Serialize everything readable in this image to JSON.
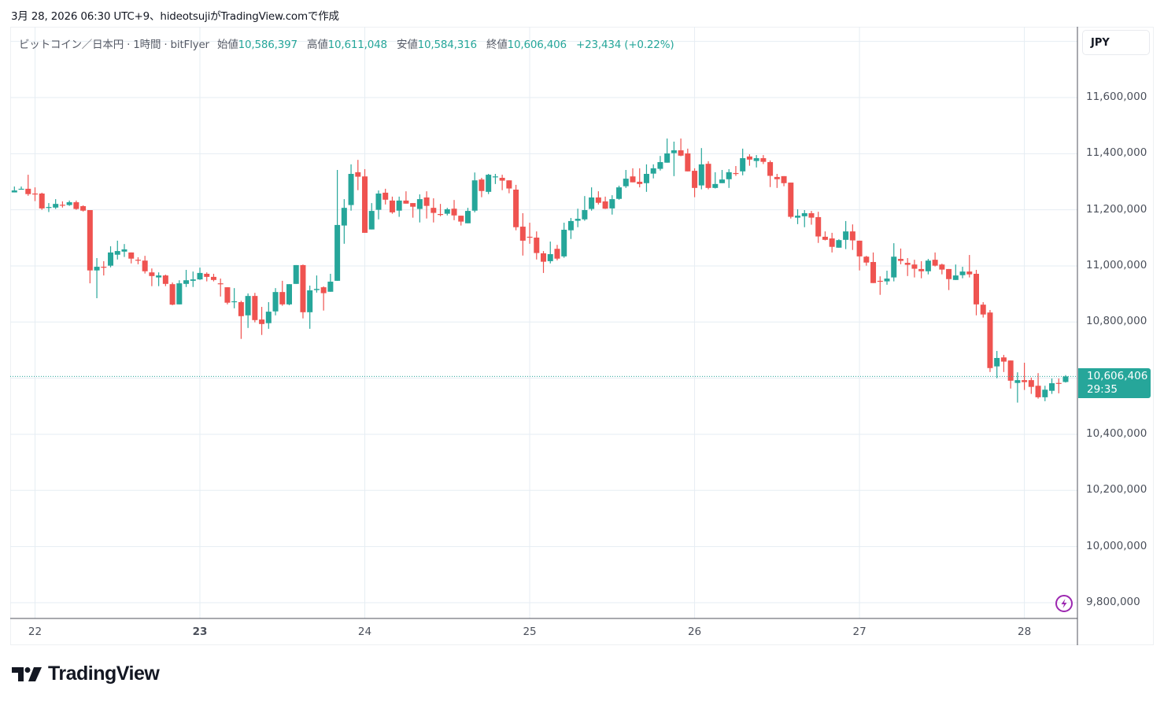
{
  "caption": "3月 28, 2026 06:30 UTC+9、hideotsujiがTradingView.comで作成",
  "legend": {
    "symbol": "ビットコイン／日本円 · 1時間 · bitFlyer",
    "open_label": "始値",
    "open": "10,586,397",
    "high_label": "高値",
    "high": "10,611,048",
    "low_label": "安値",
    "low": "10,584,316",
    "close_label": "終値",
    "close": "10,606,406",
    "change": "+23,434 (+0.22%)"
  },
  "currency_button": "JPY",
  "price_tag": {
    "price": "10,606,406",
    "countdown": "29:35"
  },
  "logo_text": "TradingView",
  "colors": {
    "up": "#26a69a",
    "down": "#ef5350",
    "grid": "#e6edf3",
    "axis": "#50535e",
    "alert": "#9c27b0"
  },
  "icons": {
    "alert": "lightning-bolt-icon",
    "logo": "tradingview-logo-icon"
  },
  "chart_data": {
    "type": "candlestick",
    "title": "ビットコイン／日本円 · 1時間 · bitFlyer",
    "interval": "1時間",
    "ohlc_unit": "thousand JPY",
    "ylim": [
      9760,
      11860
    ],
    "grid": true,
    "y_ticks": [
      {
        "value": 11600,
        "label": "11,600,000"
      },
      {
        "value": 11400,
        "label": "11,400,000"
      },
      {
        "value": 11200,
        "label": "11,200,000"
      },
      {
        "value": 11000,
        "label": "11,000,000"
      },
      {
        "value": 10800,
        "label": "10,800,000"
      },
      {
        "value": 10400,
        "label": "10,400,000"
      },
      {
        "value": 10200,
        "label": "10,200,000"
      },
      {
        "value": 10000,
        "label": "10,000,000"
      },
      {
        "value": 9800,
        "label": "9,800,000"
      }
    ],
    "x_ticks": [
      {
        "candle_index": 3,
        "label": "22"
      },
      {
        "candle_index": 27,
        "label": "23"
      },
      {
        "candle_index": 51,
        "label": "24"
      },
      {
        "candle_index": 75,
        "label": "25"
      },
      {
        "candle_index": 99,
        "label": "26"
      },
      {
        "candle_index": 123,
        "label": "27"
      },
      {
        "candle_index": 147,
        "label": "28"
      }
    ],
    "last_price": 10606.406,
    "candles_ohlc": [
      [
        11262,
        11283,
        11262,
        11269
      ],
      [
        11273,
        11283,
        11273,
        11275
      ],
      [
        11275,
        11325,
        11250,
        11256
      ],
      [
        11258,
        11280,
        11231,
        11257
      ],
      [
        11258,
        11261,
        11200,
        11205
      ],
      [
        11209,
        11224,
        11192,
        11210
      ],
      [
        11208,
        11238,
        11203,
        11221
      ],
      [
        11218,
        11230,
        11208,
        11217
      ],
      [
        11217,
        11233,
        11214,
        11227
      ],
      [
        11227,
        11233,
        11200,
        11203
      ],
      [
        11213,
        11216,
        11194,
        11197
      ],
      [
        11199,
        11199,
        10938,
        10984
      ],
      [
        10984,
        11028,
        10885,
        10997
      ],
      [
        10997,
        11017,
        10966,
        10996
      ],
      [
        11001,
        11070,
        10995,
        11048
      ],
      [
        11040,
        11090,
        11023,
        11053
      ],
      [
        11051,
        11078,
        11032,
        11059
      ],
      [
        11048,
        11048,
        11009,
        11026
      ],
      [
        11022,
        11031,
        11006,
        11021
      ],
      [
        11019,
        11036,
        10973,
        10981
      ],
      [
        10977,
        10991,
        10928,
        10964
      ],
      [
        10959,
        10977,
        10928,
        10966
      ],
      [
        10966,
        10969,
        10928,
        10936
      ],
      [
        10935,
        10941,
        10860,
        10862
      ],
      [
        10863,
        10949,
        10863,
        10938
      ],
      [
        10936,
        10986,
        10925,
        10949
      ],
      [
        10947,
        10980,
        10925,
        10952
      ],
      [
        10952,
        10994,
        10950,
        10975
      ],
      [
        10972,
        10977,
        10945,
        10961
      ],
      [
        10961,
        10972,
        10945,
        10950
      ],
      [
        10938,
        10955,
        10891,
        10937
      ],
      [
        10924,
        10924,
        10863,
        10869
      ],
      [
        10873,
        10921,
        10849,
        10874
      ],
      [
        10871,
        10876,
        10740,
        10821
      ],
      [
        10824,
        10902,
        10779,
        10893
      ],
      [
        10893,
        10904,
        10799,
        10807
      ],
      [
        10809,
        10854,
        10754,
        10793
      ],
      [
        10796,
        10871,
        10776,
        10837
      ],
      [
        10838,
        10921,
        10824,
        10907
      ],
      [
        10907,
        10947,
        10858,
        10863
      ],
      [
        10863,
        10935,
        10860,
        10935
      ],
      [
        10936,
        11003,
        10936,
        11003
      ],
      [
        11003,
        11005,
        10813,
        10835
      ],
      [
        10835,
        10930,
        10776,
        10913
      ],
      [
        10914,
        10966,
        10905,
        10918
      ],
      [
        10924,
        10927,
        10841,
        10903
      ],
      [
        10908,
        10972,
        10908,
        10944
      ],
      [
        10947,
        11342,
        10947,
        11146
      ],
      [
        11144,
        11238,
        11079,
        11207
      ],
      [
        11217,
        11362,
        11197,
        11328
      ],
      [
        11334,
        11378,
        11270,
        11318
      ],
      [
        11319,
        11345,
        11118,
        11118
      ],
      [
        11130,
        11224,
        11130,
        11196
      ],
      [
        11200,
        11269,
        11166,
        11258
      ],
      [
        11261,
        11275,
        11219,
        11236
      ],
      [
        11233,
        11247,
        11186,
        11191
      ],
      [
        11197,
        11247,
        11175,
        11233
      ],
      [
        11233,
        11266,
        11222,
        11222
      ],
      [
        11224,
        11224,
        11172,
        11211
      ],
      [
        11203,
        11255,
        11155,
        11238
      ],
      [
        11244,
        11266,
        11169,
        11214
      ],
      [
        11207,
        11241,
        11155,
        11189
      ],
      [
        11185,
        11221,
        11177,
        11184
      ],
      [
        11186,
        11207,
        11180,
        11202
      ],
      [
        11204,
        11235,
        11163,
        11180
      ],
      [
        11179,
        11179,
        11144,
        11158
      ],
      [
        11152,
        11207,
        11152,
        11196
      ],
      [
        11197,
        11333,
        11191,
        11305
      ],
      [
        11308,
        11314,
        11245,
        11267
      ],
      [
        11264,
        11328,
        11256,
        11325
      ],
      [
        11318,
        11328,
        11292,
        11319
      ],
      [
        11314,
        11325,
        11270,
        11304
      ],
      [
        11305,
        11305,
        11259,
        11276
      ],
      [
        11272,
        11289,
        11127,
        11138
      ],
      [
        11140,
        11188,
        11037,
        11090
      ],
      [
        11104,
        11154,
        11079,
        11103
      ],
      [
        11101,
        11123,
        11023,
        11046
      ],
      [
        11045,
        11053,
        10975,
        11015
      ],
      [
        11017,
        11087,
        11009,
        11042
      ],
      [
        11061,
        11075,
        11020,
        11026
      ],
      [
        11034,
        11154,
        11029,
        11129
      ],
      [
        11127,
        11171,
        11096,
        11160
      ],
      [
        11161,
        11204,
        11138,
        11168
      ],
      [
        11166,
        11249,
        11161,
        11199
      ],
      [
        11203,
        11280,
        11197,
        11244
      ],
      [
        11244,
        11266,
        11219,
        11225
      ],
      [
        11230,
        11247,
        11203,
        11204
      ],
      [
        11205,
        11252,
        11183,
        11238
      ],
      [
        11239,
        11286,
        11236,
        11280
      ],
      [
        11284,
        11342,
        11278,
        11311
      ],
      [
        11319,
        11348,
        11298,
        11298
      ],
      [
        11300,
        11348,
        11280,
        11292
      ],
      [
        11295,
        11362,
        11264,
        11328
      ],
      [
        11329,
        11362,
        11312,
        11348
      ],
      [
        11346,
        11392,
        11340,
        11370
      ],
      [
        11368,
        11454,
        11368,
        11401
      ],
      [
        11402,
        11443,
        11320,
        11412
      ],
      [
        11412,
        11454,
        11391,
        11393
      ],
      [
        11401,
        11418,
        11337,
        11337
      ],
      [
        11339,
        11348,
        11245,
        11278
      ],
      [
        11287,
        11420,
        11273,
        11362
      ],
      [
        11364,
        11373,
        11273,
        11278
      ],
      [
        11278,
        11334,
        11276,
        11292
      ],
      [
        11295,
        11342,
        11295,
        11308
      ],
      [
        11309,
        11345,
        11278,
        11334
      ],
      [
        11331,
        11356,
        11321,
        11330
      ],
      [
        11337,
        11418,
        11323,
        11384
      ],
      [
        11390,
        11398,
        11357,
        11379
      ],
      [
        11374,
        11395,
        11351,
        11384
      ],
      [
        11384,
        11395,
        11363,
        11371
      ],
      [
        11370,
        11376,
        11281,
        11321
      ],
      [
        11317,
        11328,
        11278,
        11309
      ],
      [
        11320,
        11320,
        11284,
        11295
      ],
      [
        11297,
        11297,
        11169,
        11175
      ],
      [
        11172,
        11202,
        11149,
        11179
      ],
      [
        11177,
        11199,
        11138,
        11188
      ],
      [
        11188,
        11196,
        11147,
        11172
      ],
      [
        11174,
        11193,
        11082,
        11105
      ],
      [
        11104,
        11123,
        11091,
        11093
      ],
      [
        11098,
        11118,
        11048,
        11068
      ],
      [
        11065,
        11095,
        11065,
        11092
      ],
      [
        11093,
        11160,
        11060,
        11123
      ],
      [
        11123,
        11148,
        11057,
        11091
      ],
      [
        11090,
        11090,
        10984,
        11034
      ],
      [
        11033,
        11036,
        11001,
        11012
      ],
      [
        11014,
        11048,
        10939,
        10939
      ],
      [
        10947,
        10963,
        10897,
        10946
      ],
      [
        10945,
        10983,
        10933,
        10955
      ],
      [
        10959,
        11081,
        10945,
        11033
      ],
      [
        11025,
        11062,
        11006,
        11018
      ],
      [
        11011,
        11028,
        10964,
        11004
      ],
      [
        11005,
        11022,
        10959,
        10990
      ],
      [
        10989,
        11017,
        10956,
        10981
      ],
      [
        10981,
        11025,
        10970,
        11019
      ],
      [
        11022,
        11048,
        10998,
        11001
      ],
      [
        11005,
        11008,
        10970,
        10987
      ],
      [
        10989,
        10989,
        10914,
        10953
      ],
      [
        10950,
        11005,
        10950,
        10966
      ],
      [
        10967,
        10997,
        10956,
        10980
      ],
      [
        10980,
        11039,
        10959,
        10970
      ],
      [
        10972,
        10986,
        10824,
        10863
      ],
      [
        10862,
        10871,
        10816,
        10827
      ],
      [
        10834,
        10843,
        10622,
        10636
      ],
      [
        10642,
        10697,
        10600,
        10672
      ],
      [
        10674,
        10683,
        10622,
        10659
      ],
      [
        10663,
        10663,
        10563,
        10591
      ],
      [
        10583,
        10621,
        10513,
        10593
      ],
      [
        10593,
        10655,
        10558,
        10586
      ],
      [
        10593,
        10602,
        10544,
        10569
      ],
      [
        10573,
        10618,
        10527,
        10532
      ],
      [
        10532,
        10573,
        10518,
        10559
      ],
      [
        10555,
        10599,
        10544,
        10582
      ],
      [
        10583,
        10599,
        10546,
        10582
      ],
      [
        10586.397,
        10611.048,
        10584.316,
        10606.406
      ]
    ]
  }
}
